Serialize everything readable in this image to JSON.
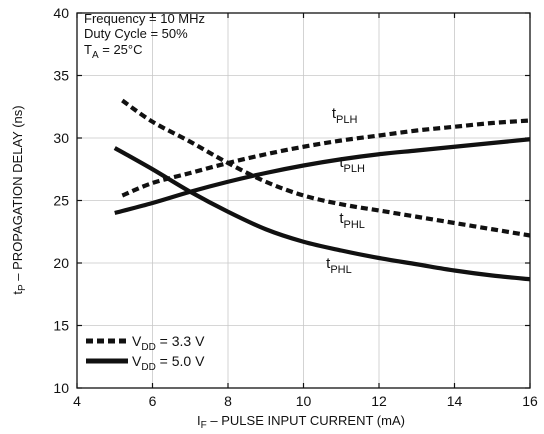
{
  "chart_data": {
    "type": "line",
    "xlabel": "IF – PULSE INPUT CURRENT (mA)",
    "ylabel": "tP – PROPAGATION DELAY (ns)",
    "xlim": [
      4,
      16
    ],
    "ylim": [
      10,
      40
    ],
    "x_ticks": [
      "4",
      "6",
      "8",
      "10",
      "12",
      "14",
      "16"
    ],
    "y_ticks": [
      "10",
      "15",
      "20",
      "25",
      "30",
      "35",
      "40"
    ],
    "grid": true,
    "conditions": [
      "Frequency = 10 MHz",
      "Duty Cycle = 50%",
      "TA = 25°C"
    ],
    "legend": {
      "placement": "bottom-left",
      "entries": [
        {
          "label": "VDD = 3.3 V",
          "style": "dashed"
        },
        {
          "label": "VDD = 5.0 V",
          "style": "solid"
        }
      ]
    },
    "series": [
      {
        "name": "tPLH",
        "supply": "VDD = 3.3 V",
        "style": "dashed",
        "x": [
          5.2,
          6,
          7,
          8,
          9,
          10,
          11,
          12,
          13,
          14,
          15,
          16
        ],
        "y": [
          25.4,
          26.4,
          27.2,
          28.0,
          28.7,
          29.3,
          29.8,
          30.2,
          30.6,
          30.9,
          31.2,
          31.4
        ]
      },
      {
        "name": "tPLH",
        "supply": "VDD = 5.0 V",
        "style": "solid",
        "x": [
          5,
          6,
          7,
          8,
          9,
          10,
          11,
          12,
          13,
          14,
          15,
          16
        ],
        "y": [
          24.0,
          24.8,
          25.7,
          26.5,
          27.2,
          27.8,
          28.3,
          28.7,
          29.0,
          29.3,
          29.6,
          29.9
        ]
      },
      {
        "name": "tPHL",
        "supply": "VDD = 3.3 V",
        "style": "dashed",
        "x": [
          5.2,
          6,
          7,
          8,
          9,
          10,
          11,
          12,
          13,
          14,
          15,
          16
        ],
        "y": [
          33.0,
          31.3,
          29.7,
          28.0,
          26.5,
          25.4,
          24.7,
          24.2,
          23.7,
          23.2,
          22.7,
          22.2
        ]
      },
      {
        "name": "tPHL",
        "supply": "VDD = 5.0 V",
        "style": "solid",
        "x": [
          5,
          6,
          7,
          8,
          9,
          10,
          11,
          12,
          13,
          14,
          15,
          16
        ],
        "y": [
          29.2,
          27.5,
          25.7,
          24.1,
          22.7,
          21.7,
          21.0,
          20.4,
          19.9,
          19.4,
          19.0,
          18.7
        ]
      }
    ],
    "curve_labels": [
      {
        "main": "t",
        "sub": "PLH",
        "x": 10.75,
        "y": 31.6
      },
      {
        "main": "t",
        "sub": "PLH",
        "x": 10.95,
        "y": 27.7
      },
      {
        "main": "t",
        "sub": "PHL",
        "x": 10.95,
        "y": 23.2
      },
      {
        "main": "t",
        "sub": "PHL",
        "x": 10.6,
        "y": 19.6
      }
    ]
  },
  "text": {
    "cond1": "Frequency = 10 MHz",
    "cond2": "Duty Cycle = 50%",
    "cond3_main": "T",
    "cond3_sub": "A",
    "cond3_rest": " = 25°C",
    "legend1_main": "V",
    "legend1_sub": "DD",
    "legend1_rest": " = 3.3 V",
    "legend2_main": "V",
    "legend2_sub": "DD",
    "legend2_rest": " = 5.0 V",
    "xlabel_main": "I",
    "xlabel_sub": "F",
    "xlabel_rest": " – PULSE INPUT CURRENT (mA)",
    "ylabel_main": "t",
    "ylabel_sub": "P",
    "ylabel_rest": " – PROPAGATION DELAY (ns)"
  }
}
